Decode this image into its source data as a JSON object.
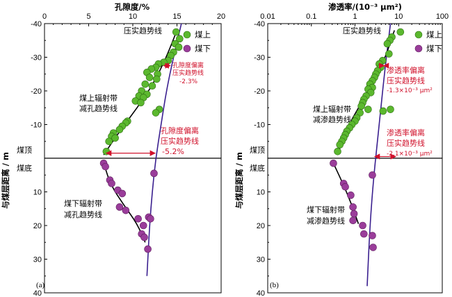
{
  "colors": {
    "above_point": "#5bb82e",
    "below_point": "#9a3d9a",
    "compaction_trend": "#3a1f8f",
    "annotation": "#d0102a",
    "fit_line": "#000000"
  },
  "shared": {
    "ylabel": "与煤层距离 / m",
    "seam_top_label": "煤顶",
    "seam_bottom_label": "煤底",
    "legend_above": "煤上",
    "legend_below": "煤下",
    "y_ticks": [
      "-40",
      "-30",
      "-20",
      "-10",
      "0",
      "10",
      "20",
      "30",
      "40"
    ]
  },
  "panel_a": {
    "panel_label": "(a)",
    "xlabel": "孔隙度/%",
    "x_ticks": [
      "0",
      "5",
      "10",
      "15",
      "20"
    ],
    "compaction_label": "压实趋势线",
    "upper_trend_label": [
      "煤上辐射带",
      "减孔趋势线"
    ],
    "lower_trend_label": [
      "煤下辐射带",
      "减孔趋势线"
    ],
    "dev_small": [
      "孔隙度偏离",
      "压实趋势线",
      "-2.3%"
    ],
    "dev_large": [
      "孔隙度偏离",
      "压实趋势线",
      "-5.2%"
    ]
  },
  "panel_b": {
    "panel_label": "(b)",
    "xlabel": "渗透率/(10⁻³ μm²)",
    "x_ticks": [
      "0.01",
      "0.1",
      "1",
      "10",
      "100"
    ],
    "compaction_label": "压实趋势线",
    "upper_trend_label": [
      "煤上辐射带",
      "减渗趋势线"
    ],
    "lower_trend_label": [
      "煤下辐射带",
      "减渗趋势线"
    ],
    "dev_small": [
      "渗透率偏离",
      "压实趋势线",
      "-1.3×10⁻³ μm²"
    ],
    "dev_large": [
      "渗透率偏离",
      "压实趋势线",
      "-2.1×10⁻³ μm²"
    ]
  },
  "chart_data": [
    {
      "type": "scatter",
      "panel": "a",
      "xlabel": "孔隙度/%",
      "ylabel": "与煤层距离 / m",
      "xlim": [
        0,
        20
      ],
      "ylim": [
        -40,
        40
      ],
      "x_scale": "linear",
      "x_axis_position": "top",
      "y_inverted": true,
      "series": [
        {
          "name": "煤上",
          "points": [
            [
              14.9,
              -37.5
            ],
            [
              15.3,
              -35.5
            ],
            [
              14.8,
              -34
            ],
            [
              15.2,
              -33
            ],
            [
              14.6,
              -31.5
            ],
            [
              14.3,
              -30.5
            ],
            [
              14.0,
              -29
            ],
            [
              13.5,
              -28.5
            ],
            [
              12.9,
              -28
            ],
            [
              12.6,
              -27
            ],
            [
              12.1,
              -26.5
            ],
            [
              11.6,
              -25.5
            ],
            [
              12.8,
              -25
            ],
            [
              11.9,
              -24
            ],
            [
              12.7,
              -23.5
            ],
            [
              11.4,
              -22
            ],
            [
              12.2,
              -21.5
            ],
            [
              11.0,
              -20
            ],
            [
              11.6,
              -19
            ],
            [
              10.7,
              -18.5
            ],
            [
              11.2,
              -18
            ],
            [
              10.3,
              -17
            ],
            [
              10.9,
              -16.5
            ],
            [
              13.0,
              -14.5
            ],
            [
              12.6,
              -13.5
            ],
            [
              9.4,
              -11
            ],
            [
              9.2,
              -10.5
            ],
            [
              8.8,
              -9.5
            ],
            [
              8.5,
              -8.5
            ],
            [
              7.8,
              -7.5
            ],
            [
              7.6,
              -6.5
            ],
            [
              8.0,
              -6
            ],
            [
              7.3,
              -5
            ],
            [
              7.0,
              -2
            ]
          ]
        },
        {
          "name": "煤下",
          "points": [
            [
              6.7,
              1.5
            ],
            [
              6.9,
              2.5
            ],
            [
              7.4,
              6.5
            ],
            [
              7.6,
              7.5
            ],
            [
              8.3,
              9.5
            ],
            [
              8.8,
              10.5
            ],
            [
              8.5,
              14.5
            ],
            [
              9.2,
              15.5
            ],
            [
              10.6,
              18
            ],
            [
              11.2,
              20
            ],
            [
              11.0,
              22.5
            ],
            [
              11.3,
              23.5
            ],
            [
              12.4,
              4.5
            ],
            [
              11.8,
              17.5
            ],
            [
              12.0,
              18
            ],
            [
              11.7,
              27
            ]
          ]
        }
      ],
      "trend_lines": [
        {
          "label": "压实趋势线",
          "points": [
            [
              15.5,
              -40
            ],
            [
              14.6,
              -30
            ],
            [
              13.8,
              -20
            ],
            [
              13.2,
              -10
            ],
            [
              12.6,
              0
            ],
            [
              12.2,
              10
            ],
            [
              11.9,
              20
            ],
            [
              11.7,
              30
            ],
            [
              11.6,
              35
            ]
          ]
        },
        {
          "label": "煤上辐射带减孔趋势线",
          "points": [
            [
              6.7,
              -1
            ],
            [
              8.5,
              -8
            ],
            [
              10.5,
              -15
            ],
            [
              12.3,
              -22
            ],
            [
              13.8,
              -30
            ],
            [
              15.0,
              -38
            ]
          ]
        },
        {
          "label": "煤下辐射带减孔趋势线",
          "points": [
            [
              6.7,
              1.5
            ],
            [
              7.5,
              8
            ],
            [
              9.0,
              14
            ],
            [
              10.5,
              19.5
            ],
            [
              11.4,
              25
            ]
          ]
        }
      ],
      "deviations": [
        {
          "label": "孔隙度偏离压实趋势线",
          "value": -2.3,
          "depth": -27.5
        },
        {
          "label": "孔隙度偏离压实趋势线",
          "value": -5.2,
          "depth": -1.5
        }
      ]
    },
    {
      "type": "scatter",
      "panel": "b",
      "xlabel": "渗透率/(10⁻³ μm²)",
      "ylabel": "与煤层距离 / m",
      "xlim": [
        0.01,
        100
      ],
      "ylim": [
        -40,
        40
      ],
      "x_scale": "log",
      "x_axis_position": "top",
      "y_inverted": true,
      "series": [
        {
          "name": "煤上",
          "points": [
            [
              11.0,
              -37.5
            ],
            [
              7.0,
              -36
            ],
            [
              6.3,
              -35
            ],
            [
              5.5,
              -34
            ],
            [
              6.0,
              -31
            ],
            [
              4.3,
              -29
            ],
            [
              3.6,
              -28
            ],
            [
              3.9,
              -27
            ],
            [
              3.3,
              -26
            ],
            [
              3.0,
              -25
            ],
            [
              2.8,
              -24
            ],
            [
              2.5,
              -23
            ],
            [
              2.2,
              -22
            ],
            [
              2.5,
              -21
            ],
            [
              2.0,
              -20.5
            ],
            [
              2.3,
              -19.5
            ],
            [
              1.8,
              -18.5
            ],
            [
              1.6,
              -17.5
            ],
            [
              1.5,
              -16.5
            ],
            [
              1.4,
              -15.5
            ],
            [
              2.0,
              -14.5
            ],
            [
              1.3,
              -13.5
            ],
            [
              6.5,
              -14.5
            ],
            [
              4.4,
              -14
            ],
            [
              1.1,
              -12
            ],
            [
              1.0,
              -11
            ],
            [
              0.85,
              -10
            ],
            [
              0.75,
              -9
            ],
            [
              0.65,
              -8
            ],
            [
              0.6,
              -7
            ],
            [
              0.55,
              -6
            ],
            [
              0.5,
              -5
            ],
            [
              0.45,
              -4
            ],
            [
              0.4,
              -2
            ]
          ]
        },
        {
          "name": "煤下",
          "points": [
            [
              0.32,
              1.5
            ],
            [
              0.55,
              7.5
            ],
            [
              0.6,
              8.5
            ],
            [
              0.8,
              11
            ],
            [
              0.9,
              14.5
            ],
            [
              0.95,
              16.5
            ],
            [
              0.9,
              18.5
            ],
            [
              1.5,
              20
            ],
            [
              1.6,
              22.5
            ],
            [
              2.5,
              23
            ],
            [
              2.6,
              26.5
            ],
            [
              2.5,
              5
            ]
          ]
        }
      ],
      "trend_lines": [
        {
          "label": "压实趋势线",
          "points": [
            [
              6.5,
              -40
            ],
            [
              4.7,
              -25
            ],
            [
              3.6,
              -10
            ],
            [
              2.7,
              5
            ],
            [
              2.2,
              20
            ],
            [
              1.9,
              38
            ]
          ]
        },
        {
          "label": "煤上辐射带减渗趋势线",
          "points": [
            [
              0.4,
              -1
            ],
            [
              0.6,
              -8
            ],
            [
              1.2,
              -15
            ],
            [
              2.5,
              -22
            ],
            [
              5.0,
              -30
            ],
            [
              8.0,
              -38
            ]
          ]
        },
        {
          "label": "煤下辐射带减渗趋势线",
          "points": [
            [
              0.32,
              1.5
            ],
            [
              0.55,
              8
            ],
            [
              0.85,
              14
            ],
            [
              1.2,
              19.5
            ]
          ]
        }
      ],
      "deviations": [
        {
          "label": "渗透率偏离压实趋势线",
          "value": -1.3,
          "unit": "10⁻³ μm²",
          "depth": -27.5
        },
        {
          "label": "渗透率偏离压实趋势线",
          "value": -2.1,
          "unit": "10⁻³ μm²",
          "depth": -0.5
        }
      ]
    }
  ]
}
